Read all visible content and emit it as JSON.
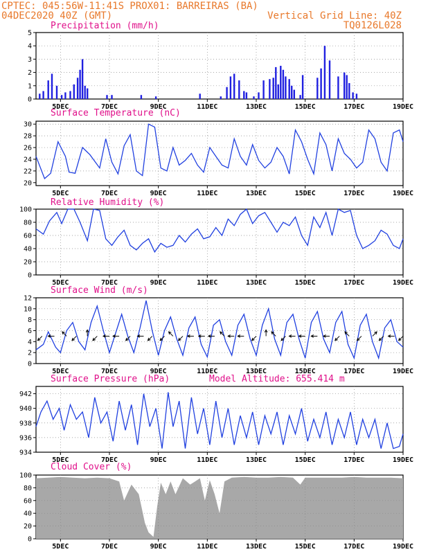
{
  "header": {
    "line1_left": "CPTEC:  045:56W-11:41S  PROX01: BARREIRAS (BA)",
    "line2_left": "04DEC2020 40Z (GMT)",
    "line2_right": "Vertical Grid Line: 40Z",
    "line3_right": "TQ0126L028"
  },
  "colors": {
    "header": "#e8782a",
    "title": "#e0108a",
    "line": "#2040e0",
    "bar": "#2020e0",
    "cloud": "#a8a8a8"
  },
  "x_tick_labels": [
    "5DEC",
    "7DEC",
    "9DEC",
    "11DEC",
    "13DEC",
    "15DEC",
    "17DEC",
    "19DEC"
  ],
  "chart_data": [
    {
      "type": "bar",
      "title": "Precipitation (mm/h)",
      "ylim": [
        0,
        5
      ],
      "yticks": [
        "0",
        "1",
        "2",
        "3",
        "4",
        "5"
      ],
      "x_range_days": [
        4.0,
        19.0
      ],
      "series": [
        {
          "name": "Precipitation",
          "x_days": [
            4.15,
            4.3,
            4.5,
            4.65,
            4.85,
            5.05,
            5.2,
            5.4,
            5.55,
            5.7,
            5.8,
            5.9,
            6.0,
            6.1,
            6.9,
            7.1,
            8.3,
            8.9,
            10.7,
            11.55,
            11.8,
            11.95,
            12.1,
            12.3,
            12.5,
            12.6,
            12.9,
            13.1,
            13.3,
            13.55,
            13.7,
            13.8,
            13.9,
            14.0,
            14.1,
            14.2,
            14.35,
            14.45,
            14.55,
            14.8,
            14.9,
            15.5,
            15.65,
            15.8,
            16.0,
            16.35,
            16.6,
            16.7,
            16.8,
            16.95,
            17.1
          ],
          "values": [
            0.4,
            0.6,
            1.4,
            1.9,
            1.0,
            0.3,
            0.5,
            0.6,
            1.1,
            1.6,
            2.2,
            3.0,
            1.0,
            0.8,
            0.3,
            0.3,
            0.3,
            0.2,
            0.4,
            0.2,
            0.9,
            1.7,
            1.9,
            1.4,
            0.6,
            0.5,
            0.2,
            0.5,
            1.4,
            1.5,
            1.6,
            2.4,
            1.1,
            2.5,
            2.2,
            1.7,
            1.5,
            1.0,
            0.7,
            0.3,
            1.8,
            1.6,
            2.3,
            4.0,
            2.9,
            1.7,
            2.0,
            1.8,
            1.2,
            0.5,
            0.4
          ]
        }
      ]
    },
    {
      "type": "line",
      "title": "Surface Temperature (nC)",
      "ylim": [
        19.5,
        30.5
      ],
      "yticks": [
        "20",
        "22",
        "24",
        "26",
        "28",
        "30"
      ],
      "series": [
        {
          "name": "Temperature",
          "x_days": [
            4.0,
            4.35,
            4.6,
            4.9,
            5.2,
            5.35,
            5.6,
            5.9,
            6.2,
            6.6,
            6.85,
            7.1,
            7.35,
            7.6,
            7.85,
            8.1,
            8.35,
            8.6,
            8.85,
            9.1,
            9.35,
            9.6,
            9.85,
            10.1,
            10.35,
            10.6,
            10.85,
            11.1,
            11.35,
            11.6,
            11.85,
            12.1,
            12.35,
            12.6,
            12.85,
            13.1,
            13.35,
            13.6,
            13.85,
            14.1,
            14.35,
            14.6,
            14.85,
            15.1,
            15.35,
            15.6,
            15.85,
            16.1,
            16.35,
            16.6,
            16.85,
            17.1,
            17.35,
            17.6,
            17.85,
            18.1,
            18.35,
            18.6,
            18.85,
            19.0
          ],
          "values": [
            24.5,
            20.7,
            21.6,
            27.0,
            24.5,
            21.8,
            21.6,
            26.0,
            24.8,
            22.5,
            27.5,
            23.5,
            21.5,
            26.3,
            28.2,
            22.0,
            21.2,
            30.0,
            29.5,
            22.5,
            22.0,
            26.0,
            23.0,
            23.8,
            25.0,
            23.0,
            21.8,
            26.0,
            24.5,
            23.0,
            22.5,
            27.5,
            24.5,
            23.0,
            26.5,
            23.8,
            22.5,
            23.5,
            26.0,
            24.5,
            21.5,
            29.0,
            27.0,
            24.0,
            21.5,
            28.5,
            26.5,
            22.0,
            27.5,
            25.0,
            24.0,
            22.5,
            23.5,
            29.0,
            27.5,
            23.5,
            22.0,
            28.5,
            29.0,
            27.0
          ]
        }
      ]
    },
    {
      "type": "line",
      "title": "Relative Humidity (%)",
      "ylim": [
        0,
        100
      ],
      "yticks": [
        "0",
        "20",
        "40",
        "60",
        "80",
        "100"
      ],
      "series": [
        {
          "name": "Relative Humidity",
          "x_days": [
            4.0,
            4.3,
            4.55,
            4.85,
            5.05,
            5.3,
            5.55,
            5.8,
            6.1,
            6.35,
            6.6,
            6.85,
            7.1,
            7.35,
            7.6,
            7.85,
            8.1,
            8.35,
            8.6,
            8.85,
            9.1,
            9.35,
            9.6,
            9.85,
            10.1,
            10.35,
            10.6,
            10.85,
            11.1,
            11.35,
            11.6,
            11.85,
            12.1,
            12.35,
            12.6,
            12.85,
            13.1,
            13.35,
            13.6,
            13.85,
            14.1,
            14.35,
            14.6,
            14.85,
            15.1,
            15.35,
            15.6,
            15.85,
            16.1,
            16.35,
            16.6,
            16.85,
            17.1,
            17.35,
            17.6,
            17.85,
            18.1,
            18.35,
            18.6,
            18.85,
            19.0
          ],
          "values": [
            70,
            62,
            82,
            95,
            78,
            100,
            100,
            80,
            52,
            100,
            98,
            55,
            45,
            58,
            68,
            45,
            38,
            48,
            55,
            35,
            48,
            42,
            45,
            60,
            50,
            62,
            70,
            55,
            58,
            72,
            60,
            85,
            75,
            92,
            100,
            78,
            90,
            95,
            80,
            65,
            80,
            75,
            88,
            60,
            45,
            88,
            72,
            95,
            60,
            100,
            95,
            98,
            60,
            40,
            45,
            52,
            68,
            62,
            45,
            40,
            55
          ]
        }
      ]
    },
    {
      "type": "line",
      "title": "Surface Wind (m/s)",
      "ylim": [
        0,
        12
      ],
      "yticks": [
        "0",
        "2",
        "4",
        "6",
        "8",
        "10",
        "12"
      ],
      "series": [
        {
          "name": "Wind speed",
          "x_days": [
            4.0,
            4.3,
            4.5,
            4.8,
            5.0,
            5.25,
            5.5,
            5.75,
            6.0,
            6.25,
            6.5,
            6.75,
            7.0,
            7.25,
            7.5,
            7.75,
            8.0,
            8.25,
            8.5,
            8.75,
            9.0,
            9.25,
            9.5,
            9.75,
            10.0,
            10.25,
            10.5,
            10.75,
            11.0,
            11.25,
            11.5,
            11.75,
            12.0,
            12.25,
            12.5,
            12.75,
            13.0,
            13.25,
            13.5,
            13.75,
            14.0,
            14.25,
            14.5,
            14.75,
            15.0,
            15.25,
            15.5,
            15.75,
            16.0,
            16.25,
            16.5,
            16.75,
            17.0,
            17.25,
            17.5,
            17.75,
            18.0,
            18.25,
            18.5,
            18.75,
            19.0
          ],
          "values": [
            2.5,
            3.5,
            5.8,
            3.0,
            2.0,
            6.0,
            7.5,
            4.0,
            2.5,
            7.5,
            10.5,
            6.0,
            2.0,
            5.5,
            9.0,
            5.0,
            2.0,
            6.5,
            11.5,
            6.0,
            1.5,
            6.0,
            8.5,
            4.5,
            1.5,
            6.5,
            8.5,
            3.5,
            1.2,
            7.0,
            8.0,
            4.0,
            1.5,
            7.0,
            9.0,
            4.5,
            1.5,
            7.0,
            10.0,
            4.5,
            1.5,
            7.5,
            9.0,
            4.5,
            1.0,
            7.5,
            9.5,
            4.5,
            2.0,
            7.5,
            9.5,
            3.5,
            1.0,
            7.0,
            9.0,
            4.0,
            1.0,
            6.5,
            8.0,
            4.0,
            3.0
          ]
        }
      ],
      "arrows": [
        {
          "x_days": 4.25,
          "dir": "SW"
        },
        {
          "x_days": 4.75,
          "dir": "W"
        },
        {
          "x_days": 5.25,
          "dir": "NW"
        },
        {
          "x_days": 5.65,
          "dir": "SW"
        },
        {
          "x_days": 6.1,
          "dir": "N"
        },
        {
          "x_days": 6.5,
          "dir": "SW"
        },
        {
          "x_days": 7.0,
          "dir": "W"
        },
        {
          "x_days": 7.4,
          "dir": "W"
        },
        {
          "x_days": 7.85,
          "dir": "SW"
        },
        {
          "x_days": 8.4,
          "dir": "W"
        },
        {
          "x_days": 8.75,
          "dir": "SW"
        },
        {
          "x_days": 9.25,
          "dir": "SW"
        },
        {
          "x_days": 9.6,
          "dir": "NW"
        },
        {
          "x_days": 10.0,
          "dir": "SW"
        },
        {
          "x_days": 10.45,
          "dir": "W"
        },
        {
          "x_days": 10.9,
          "dir": "W"
        },
        {
          "x_days": 11.3,
          "dir": "W"
        },
        {
          "x_days": 11.7,
          "dir": "NW"
        },
        {
          "x_days": 12.1,
          "dir": "W"
        },
        {
          "x_days": 12.5,
          "dir": "W"
        },
        {
          "x_days": 13.0,
          "dir": "SW"
        },
        {
          "x_days": 13.4,
          "dir": "N"
        },
        {
          "x_days": 13.8,
          "dir": "NW"
        },
        {
          "x_days": 14.2,
          "dir": "SW"
        },
        {
          "x_days": 14.6,
          "dir": "W"
        },
        {
          "x_days": 15.0,
          "dir": "W"
        },
        {
          "x_days": 15.5,
          "dir": "W"
        },
        {
          "x_days": 16.0,
          "dir": "W"
        },
        {
          "x_days": 16.4,
          "dir": "SW"
        },
        {
          "x_days": 16.8,
          "dir": "NW"
        },
        {
          "x_days": 17.3,
          "dir": "SW"
        },
        {
          "x_days": 17.75,
          "dir": "NE"
        },
        {
          "x_days": 18.2,
          "dir": "SW"
        },
        {
          "x_days": 18.65,
          "dir": "W"
        },
        {
          "x_days": 19.0,
          "dir": "SW"
        }
      ]
    },
    {
      "type": "line",
      "title": "Surface Pressure (hPa)",
      "subtitle": "Model Altitude: 655.414 m",
      "ylim": [
        934,
        943
      ],
      "yticks": [
        "934",
        "936",
        "938",
        "940",
        "942"
      ],
      "series": [
        {
          "name": "Pressure",
          "x_days": [
            4.0,
            4.2,
            4.45,
            4.7,
            4.95,
            5.15,
            5.4,
            5.65,
            5.9,
            6.15,
            6.4,
            6.65,
            6.9,
            7.15,
            7.4,
            7.65,
            7.9,
            8.15,
            8.4,
            8.65,
            8.9,
            9.15,
            9.4,
            9.6,
            9.85,
            10.1,
            10.35,
            10.6,
            10.85,
            11.1,
            11.35,
            11.6,
            11.85,
            12.1,
            12.35,
            12.6,
            12.85,
            13.1,
            13.35,
            13.6,
            13.85,
            14.1,
            14.35,
            14.6,
            14.85,
            15.1,
            15.35,
            15.6,
            15.85,
            16.1,
            16.35,
            16.6,
            16.85,
            17.1,
            17.35,
            17.6,
            17.85,
            18.1,
            18.35,
            18.6,
            18.85,
            19.0
          ],
          "values": [
            937.5,
            939.5,
            941.0,
            938.5,
            940.0,
            937.0,
            940.5,
            938.5,
            939.5,
            936.0,
            941.5,
            938.0,
            939.5,
            935.5,
            941.0,
            937.0,
            940.5,
            935.0,
            942.0,
            937.5,
            940.0,
            934.5,
            942.2,
            937.5,
            941.0,
            934.5,
            941.5,
            936.5,
            940.0,
            935.0,
            941.0,
            936.0,
            940.0,
            935.0,
            939.0,
            936.0,
            939.5,
            935.0,
            939.0,
            936.5,
            939.5,
            935.0,
            939.0,
            936.5,
            940.0,
            935.5,
            938.5,
            936.0,
            939.5,
            935.0,
            938.5,
            936.0,
            939.5,
            935.0,
            938.5,
            936.0,
            938.5,
            934.5,
            938.0,
            934.5,
            934.8,
            936.5
          ]
        }
      ]
    },
    {
      "type": "area",
      "title": "Cloud Cover (%)",
      "ylim": [
        0,
        100
      ],
      "yticks": [
        "0",
        "20",
        "40",
        "60",
        "80",
        "100"
      ],
      "series": [
        {
          "name": "Cloud cover",
          "x_days": [
            4.0,
            4.5,
            5.0,
            5.5,
            6.0,
            6.5,
            7.0,
            7.4,
            7.6,
            7.9,
            8.2,
            8.45,
            8.6,
            8.8,
            8.95,
            9.1,
            9.3,
            9.5,
            9.7,
            10.0,
            10.3,
            10.5,
            10.7,
            10.9,
            11.1,
            11.3,
            11.5,
            11.7,
            12.0,
            12.5,
            13.0,
            13.5,
            14.0,
            14.5,
            14.8,
            15.0,
            15.5,
            16.0,
            16.5,
            17.0,
            17.5,
            18.0,
            18.5,
            19.0
          ],
          "values": [
            95,
            96,
            97,
            96,
            95,
            96,
            95,
            90,
            60,
            85,
            70,
            25,
            10,
            3,
            50,
            88,
            70,
            90,
            70,
            95,
            85,
            90,
            95,
            60,
            92,
            70,
            40,
            90,
            96,
            97,
            96,
            96,
            97,
            96,
            85,
            96,
            96,
            96,
            96,
            97,
            96,
            96,
            96,
            95
          ]
        }
      ]
    }
  ]
}
